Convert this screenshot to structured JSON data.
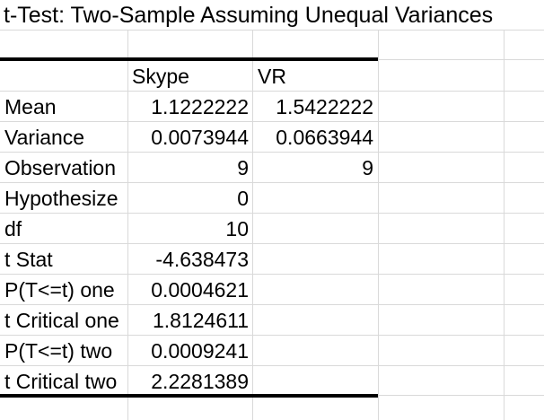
{
  "title": "t-Test: Two-Sample Assuming Unequal Variances",
  "columns": [
    "Skype",
    "VR"
  ],
  "rows": [
    {
      "label": "Mean",
      "skype": "1.1222222",
      "vr": "1.5422222"
    },
    {
      "label": "Variance",
      "skype": "0.0073944",
      "vr": "0.0663944"
    },
    {
      "label": "Observation",
      "skype": "9",
      "vr": "9"
    },
    {
      "label": "Hypothesize",
      "skype": "0",
      "vr": ""
    },
    {
      "label": "df",
      "skype": "10",
      "vr": ""
    },
    {
      "label": "t Stat",
      "skype": "-4.638473",
      "vr": ""
    },
    {
      "label": "P(T<=t) one",
      "skype": "0.0004621",
      "vr": ""
    },
    {
      "label": "t Critical one",
      "skype": "1.8124611",
      "vr": ""
    },
    {
      "label": "P(T<=t) two",
      "skype": "0.0009241",
      "vr": ""
    },
    {
      "label": "t Critical two",
      "skype": "2.2281389",
      "vr": ""
    }
  ]
}
